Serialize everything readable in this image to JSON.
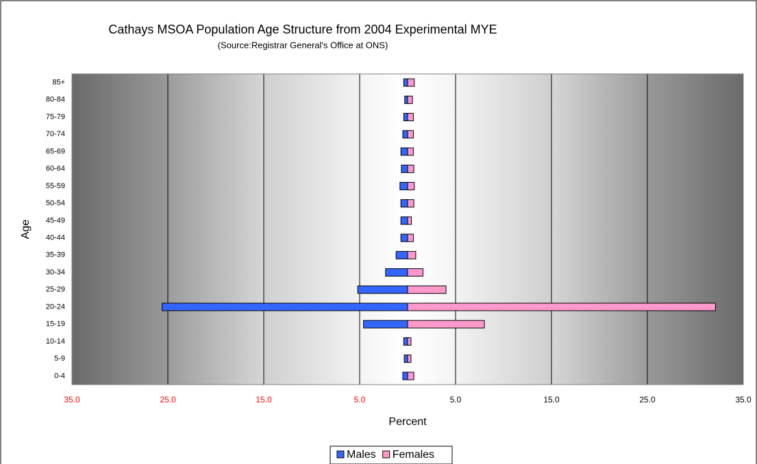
{
  "chart_data": {
    "type": "pyramid",
    "title": "Cathays MSOA Population Age Structure from 2004 Experimental MYE",
    "subtitle": "(Source:Registrar General's Office at ONS)",
    "x_label": "Percent",
    "y_label": "Age",
    "categories": [
      "0-4",
      "5-9",
      "10-14",
      "15-19",
      "20-24",
      "25-29",
      "30-34",
      "35-39",
      "40-44",
      "45-49",
      "50-54",
      "55-59",
      "60-64",
      "65-69",
      "70-74",
      "75-79",
      "80-84",
      "85+"
    ],
    "series": [
      {
        "name": "Males",
        "color": "#3366ff",
        "values": [
          -0.5,
          -0.35,
          -0.4,
          -4.6,
          -25.6,
          -5.2,
          -2.3,
          -1.2,
          -0.7,
          -0.7,
          -0.7,
          -0.8,
          -0.65,
          -0.7,
          -0.5,
          -0.4,
          -0.3,
          -0.4
        ]
      },
      {
        "name": "Females",
        "color": "#ff99cc",
        "values": [
          0.65,
          0.35,
          0.35,
          8.0,
          32.1,
          4.0,
          1.6,
          0.85,
          0.6,
          0.4,
          0.65,
          0.7,
          0.65,
          0.6,
          0.6,
          0.6,
          0.5,
          0.7
        ]
      }
    ],
    "xlim": [
      -35,
      35
    ],
    "xticks": [
      {
        "value": -35,
        "label": "35.0"
      },
      {
        "value": -25,
        "label": "25.0"
      },
      {
        "value": -15,
        "label": "15.0"
      },
      {
        "value": -5,
        "label": "5.0"
      },
      {
        "value": 5,
        "label": "5.0"
      },
      {
        "value": 15,
        "label": "15.0"
      },
      {
        "value": 25,
        "label": "25.0"
      },
      {
        "value": 35,
        "label": "35.0"
      }
    ],
    "negative_tick_color": "#ff0000",
    "grid": true,
    "legend": "bottom"
  }
}
